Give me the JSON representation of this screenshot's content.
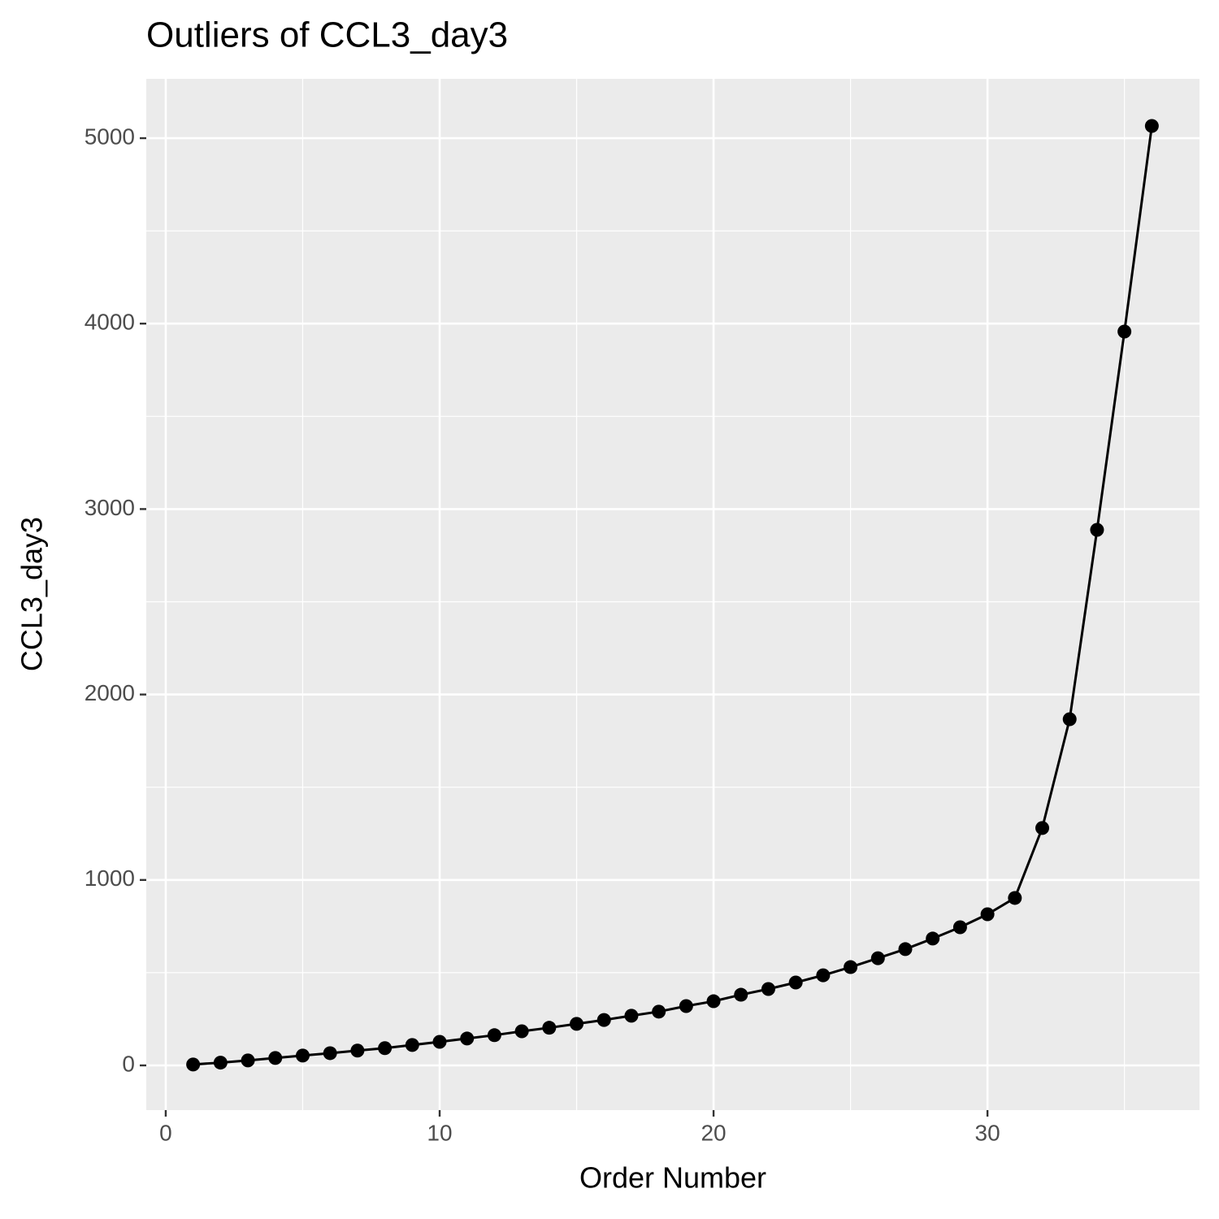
{
  "chart_data": {
    "type": "line",
    "title": "Outliers of CCL3_day3",
    "x_label": "Order Number",
    "y_label": "CCL3_day3",
    "x": [
      1,
      2,
      3,
      4,
      5,
      6,
      7,
      8,
      9,
      10,
      11,
      12,
      13,
      14,
      15,
      16,
      17,
      18,
      19,
      20,
      21,
      22,
      23,
      24,
      25,
      26,
      27,
      28,
      29,
      30,
      31,
      32,
      33,
      34,
      35,
      36
    ],
    "series": [
      {
        "name": "CCL3_day3",
        "color": "#000000",
        "values": [
          5,
          15,
          27,
          40,
          53,
          66,
          80,
          93,
          110,
          127,
          145,
          163,
          184,
          203,
          224,
          245,
          268,
          290,
          320,
          346,
          381,
          412,
          447,
          486,
          530,
          578,
          627,
          684,
          745,
          815,
          903,
          1280,
          1867,
          2888,
          3957,
          5066
        ]
      }
    ],
    "xlim": [
      -0.71,
      37.74
    ],
    "xticks": [
      0,
      10,
      20,
      30
    ],
    "ylim": [
      -241,
      5320
    ],
    "yticks": [
      0,
      1000,
      2000,
      3000,
      4000,
      5000
    ],
    "grid": true
  }
}
